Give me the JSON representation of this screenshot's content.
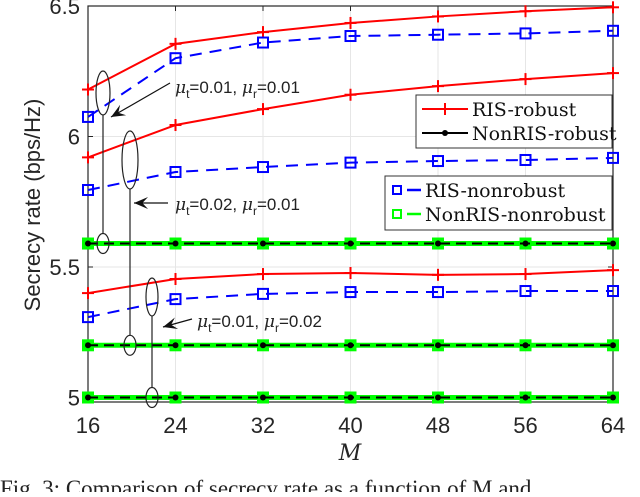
{
  "chart_data": {
    "type": "line",
    "title": "",
    "xlabel": "M",
    "ylabel": "Secrecy rate (bps/Hz)",
    "x": [
      16,
      24,
      32,
      40,
      48,
      56,
      64
    ],
    "xlim": [
      16,
      64
    ],
    "ylim": [
      4.98,
      6.5
    ],
    "xticks": [
      "16",
      "24",
      "32",
      "40",
      "48",
      "56",
      "64"
    ],
    "yticks": [
      {
        "value": 5.0,
        "label": "5"
      },
      {
        "value": 5.5,
        "label": "5.5"
      },
      {
        "value": 6.0,
        "label": "6"
      },
      {
        "value": 6.5,
        "label": "6.5"
      }
    ],
    "grid": true,
    "series": [
      {
        "name": "RIS-robust",
        "group": "mu_t=0.01, mu_r=0.01",
        "color": "#ff0000",
        "style": "solid",
        "marker": "plus",
        "values": [
          6.18,
          6.355,
          6.4,
          6.435,
          6.46,
          6.48,
          6.495
        ]
      },
      {
        "name": "RIS-nonrobust",
        "group": "mu_t=0.01, mu_r=0.01",
        "color": "#0000ff",
        "style": "dashed",
        "marker": "square",
        "values": [
          6.075,
          6.3,
          6.36,
          6.385,
          6.39,
          6.395,
          6.405
        ]
      },
      {
        "name": "RIS-robust",
        "group": "mu_t=0.02, mu_r=0.01",
        "color": "#ff0000",
        "style": "solid",
        "marker": "plus",
        "values": [
          5.92,
          6.044,
          6.105,
          6.16,
          6.193,
          6.22,
          6.243
        ]
      },
      {
        "name": "RIS-nonrobust",
        "group": "mu_t=0.02, mu_r=0.01",
        "color": "#0000ff",
        "style": "dashed",
        "marker": "square",
        "values": [
          5.795,
          5.864,
          5.883,
          5.9,
          5.906,
          5.91,
          5.918
        ]
      },
      {
        "name": "RIS-robust",
        "group": "mu_t=0.01, mu_r=0.02",
        "color": "#ff0000",
        "style": "solid",
        "marker": "plus",
        "values": [
          5.4,
          5.454,
          5.473,
          5.477,
          5.47,
          5.473,
          5.488
        ]
      },
      {
        "name": "RIS-nonrobust",
        "group": "mu_t=0.01, mu_r=0.02",
        "color": "#0000ff",
        "style": "dashed",
        "marker": "square",
        "values": [
          5.308,
          5.377,
          5.397,
          5.404,
          5.404,
          5.408,
          5.408
        ]
      },
      {
        "name": "NonRIS-robust",
        "group": "mu_t=0.01, mu_r=0.01",
        "color": "#000000",
        "style": "solid",
        "marker": "dot",
        "values": [
          5.59,
          5.59,
          5.59,
          5.59,
          5.59,
          5.59,
          5.59
        ]
      },
      {
        "name": "NonRIS-nonrobust",
        "group": "mu_t=0.01, mu_r=0.01",
        "color": "#00ff00",
        "style": "dashed",
        "marker": "square",
        "values": [
          5.59,
          5.59,
          5.59,
          5.59,
          5.59,
          5.59,
          5.59
        ]
      },
      {
        "name": "NonRIS-robust",
        "group": "mu_t=0.02, mu_r=0.01",
        "color": "#000000",
        "style": "solid",
        "marker": "dot",
        "values": [
          5.2,
          5.2,
          5.2,
          5.2,
          5.2,
          5.2,
          5.2
        ]
      },
      {
        "name": "NonRIS-nonrobust",
        "group": "mu_t=0.02, mu_r=0.01",
        "color": "#00ff00",
        "style": "dashed",
        "marker": "square",
        "values": [
          5.2,
          5.2,
          5.2,
          5.2,
          5.2,
          5.2,
          5.2
        ]
      },
      {
        "name": "NonRIS-robust",
        "group": "mu_t=0.01, mu_r=0.02",
        "color": "#000000",
        "style": "solid",
        "marker": "dot",
        "values": [
          5.0,
          5.0,
          5.0,
          5.0,
          5.0,
          5.0,
          5.0
        ]
      },
      {
        "name": "NonRIS-nonrobust",
        "group": "mu_t=0.01, mu_r=0.02",
        "color": "#00ff00",
        "style": "dashed",
        "marker": "square",
        "values": [
          5.0,
          5.0,
          5.0,
          5.0,
          5.0,
          5.0,
          5.0
        ]
      }
    ],
    "legend": [
      {
        "box": 1,
        "label": "RIS-robust",
        "color": "#ff0000",
        "style": "solid",
        "marker": "plus"
      },
      {
        "box": 1,
        "label": "NonRIS-robust",
        "color": "#000000",
        "style": "solid",
        "marker": "dot"
      },
      {
        "box": 2,
        "label": "RIS-nonrobust",
        "color": "#0000ff",
        "style": "dashed",
        "marker": "square"
      },
      {
        "box": 2,
        "label": "NonRIS-nonrobust",
        "color": "#00ff00",
        "style": "dashed",
        "marker": "square"
      }
    ],
    "annotations": [
      {
        "mu_t": "0.01",
        "mu_r": "0.01",
        "sep": ", "
      },
      {
        "mu_t": "0.02",
        "mu_r": "0.01",
        "sep": ", "
      },
      {
        "mu_t": "0.01",
        "mu_r": "0.02",
        "sep": ", "
      }
    ]
  },
  "caption": "Fig. 3: Comparison of secrecy rate as a function of M and"
}
